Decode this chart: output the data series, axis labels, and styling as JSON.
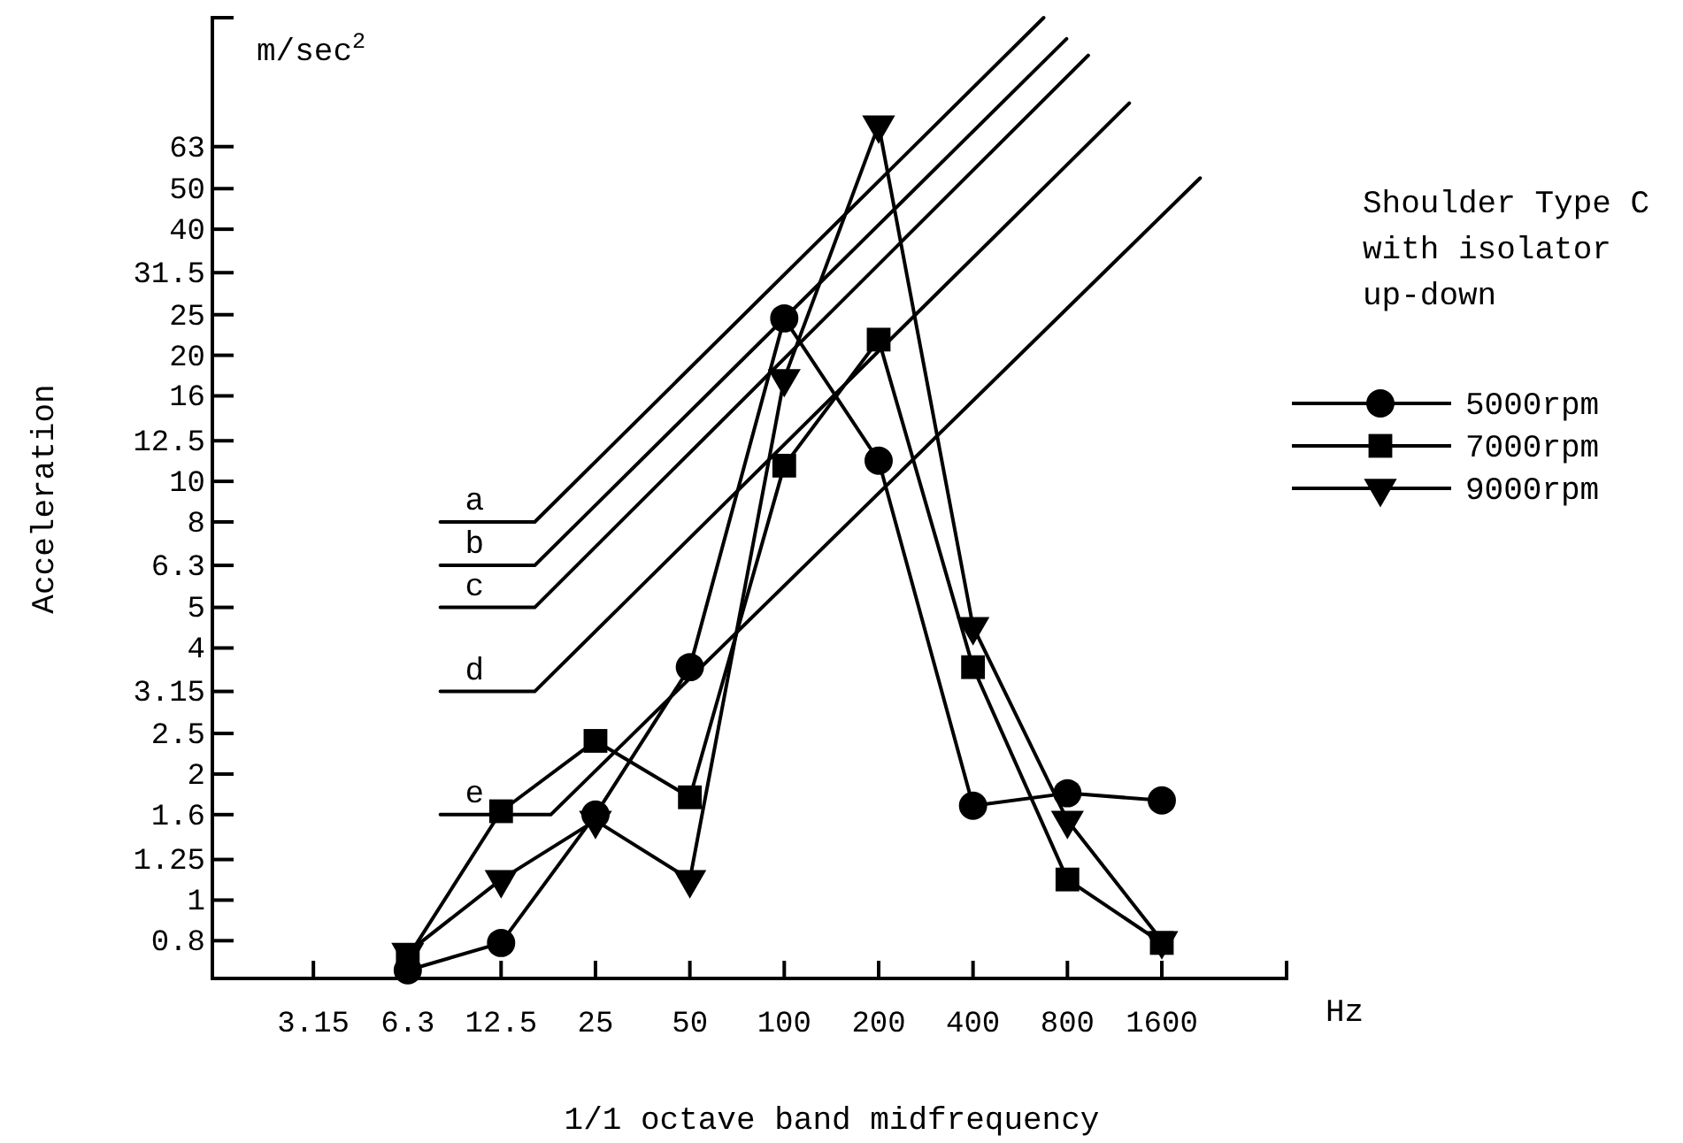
{
  "chart_data": {
    "type": "line",
    "xlabel": "1/1 octave band midfrequency",
    "ylabel": "Acceleration",
    "legend_title": "Shoulder Type C with isolator up-down",
    "annotations": [
      "m/sec$^{2}$",
      "Hz"
    ],
    "log": "xy",
    "xlim": [
      1.5,
      4000
    ],
    "ylim": [
      0.65,
      128
    ],
    "xticks": [
      3.15,
      6.3,
      12.5,
      25,
      50,
      100,
      200,
      400,
      800,
      1600
    ],
    "yticks": [
      0.8,
      1,
      1.25,
      1.6,
      2,
      2.5,
      3.15,
      4,
      5,
      6.3,
      8,
      10,
      12.5,
      16,
      20,
      25,
      31.5,
      40,
      50,
      63
    ],
    "grid": false,
    "legend": "right",
    "series": [
      {
        "name": "5000rpm",
        "color": "#000000",
        "marker": "circle",
        "x": [
          6.3,
          12.5,
          25,
          50,
          100,
          200,
          400,
          800,
          1600
        ],
        "values": [
          0.68,
          0.79,
          1.6,
          3.6,
          24.5,
          11.2,
          1.68,
          1.8,
          1.73
        ]
      },
      {
        "name": "7000rpm",
        "color": "#000000",
        "marker": "square",
        "x": [
          6.3,
          12.5,
          25,
          50,
          100,
          200,
          400,
          800,
          1600
        ],
        "values": [
          0.73,
          1.63,
          2.4,
          1.76,
          10.9,
          21.8,
          3.6,
          1.12,
          0.79
        ]
      },
      {
        "name": "9000rpm",
        "color": "#000000",
        "marker": "triangle",
        "x": [
          6.3,
          12.5,
          25,
          50,
          100,
          200,
          400,
          800,
          1600
        ],
        "values": [
          0.75,
          1.12,
          1.55,
          1.12,
          17.6,
          71,
          4.5,
          1.55,
          0.8
        ]
      },
      {
        "name": "a",
        "color": "#000000",
        "marker": "none",
        "x": [
          8,
          16,
          672
        ],
        "values": [
          8,
          8,
          128
        ]
      },
      {
        "name": "b",
        "color": "#000000",
        "marker": "none",
        "x": [
          8,
          16,
          795
        ],
        "values": [
          6.3,
          6.3,
          114
        ]
      },
      {
        "name": "c",
        "color": "#000000",
        "marker": "none",
        "x": [
          8,
          16,
          932
        ],
        "values": [
          5,
          5,
          104
        ]
      },
      {
        "name": "d",
        "color": "#000000",
        "marker": "none",
        "x": [
          8,
          16,
          1260
        ],
        "values": [
          3.15,
          3.15,
          80
        ]
      },
      {
        "name": "e",
        "color": "#000000",
        "marker": "none",
        "x": [
          8,
          18,
          2120
        ],
        "values": [
          1.6,
          1.6,
          53
        ]
      }
    ]
  }
}
